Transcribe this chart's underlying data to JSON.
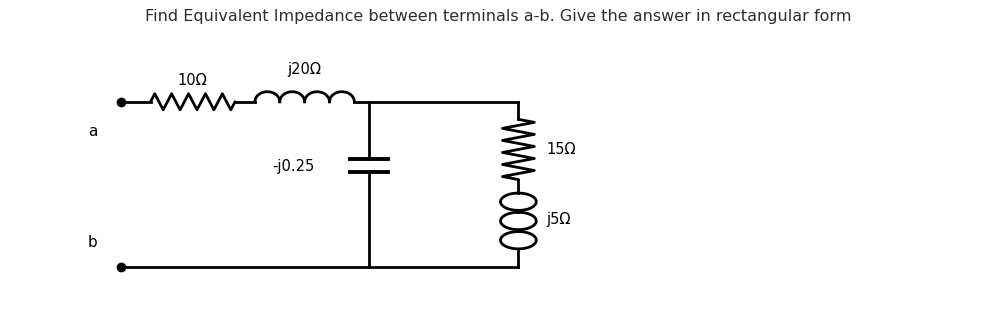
{
  "title": "Find Equivalent Impedance between terminals a-b. Give the answer in rectangular form",
  "title_fontsize": 11.5,
  "title_color": "#2e2e2e",
  "bg_color": "#ffffff",
  "figsize": [
    9.97,
    3.29
  ],
  "dpi": 100,
  "terminal_a_label": "a",
  "terminal_b_label": "b",
  "resistor_label": "10Ω",
  "inductor_label": "j20Ω",
  "capacitor_label": "-j0.25",
  "resistor2_label": "15Ω",
  "inductor2_label": "j5Ω",
  "lw": 2.0,
  "color": "black"
}
